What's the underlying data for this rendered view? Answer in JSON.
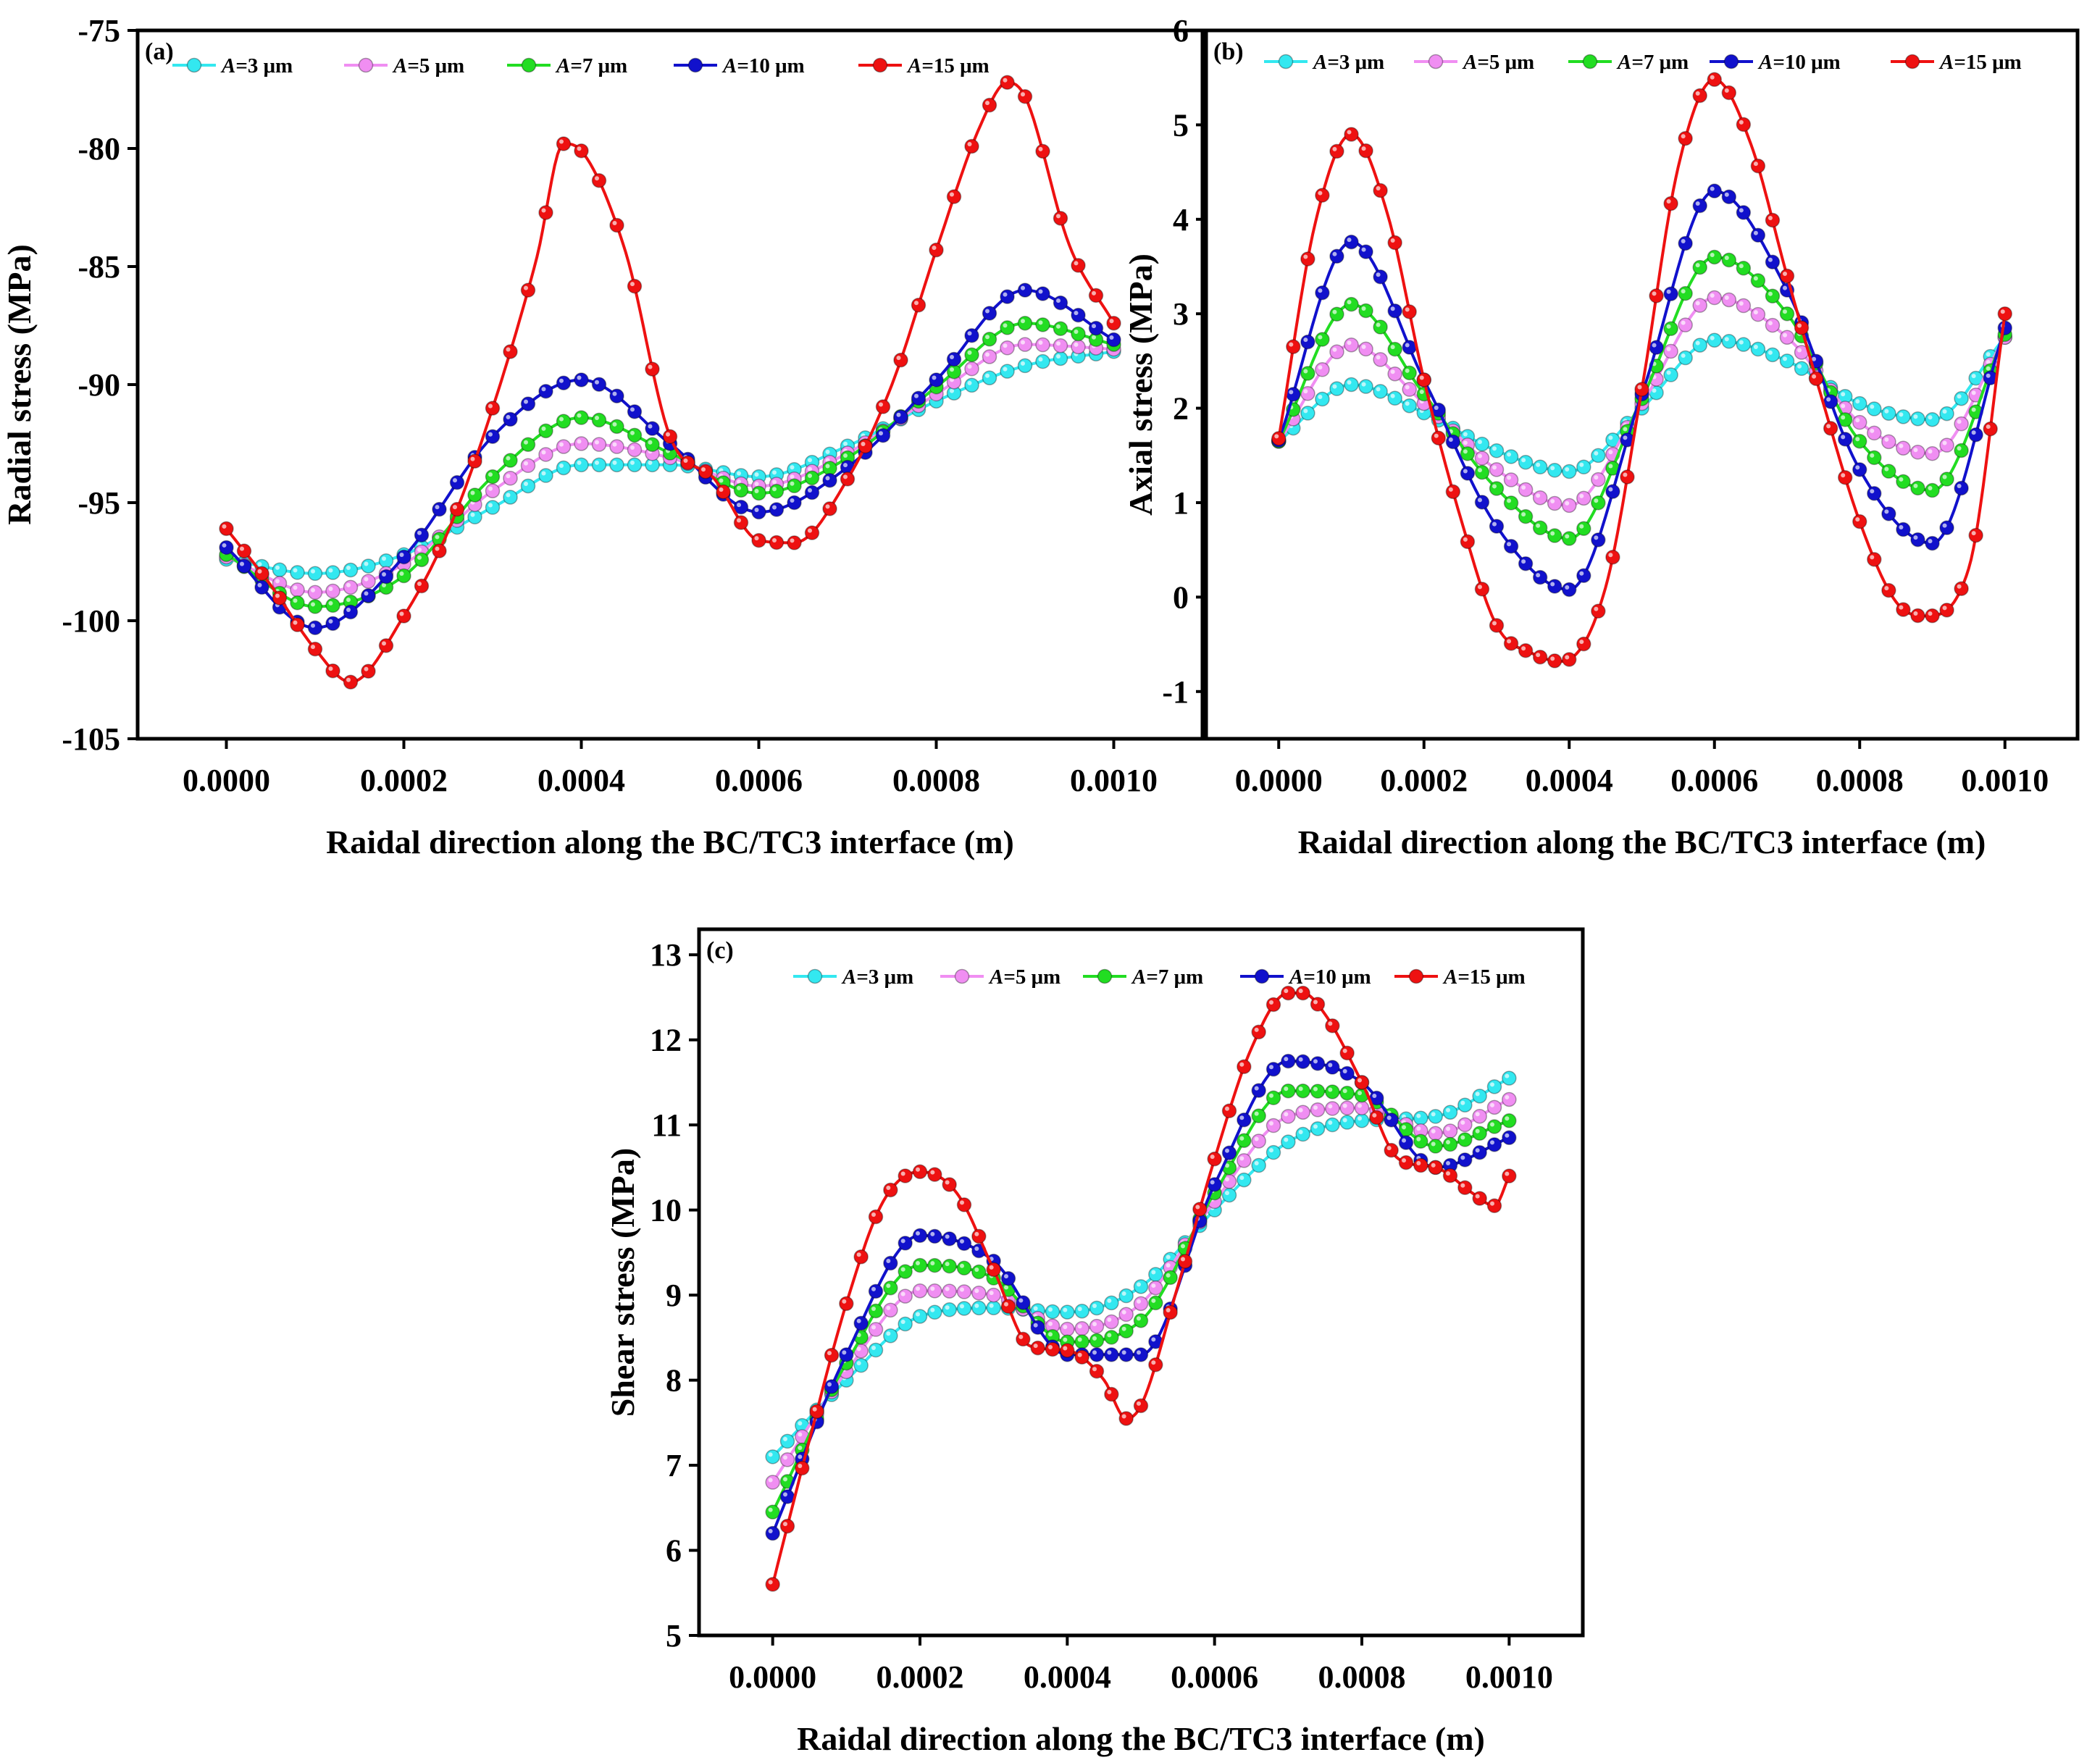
{
  "figure": {
    "x_axis_label": "Raidal direction along the BC/TC3 interface (m)",
    "legend_entries": [
      "A=3 μm",
      "A=5 μm",
      "A=7 μm",
      "A=10 μm",
      "A=15 μm"
    ],
    "series_colors": [
      "#33e8f0",
      "#f08ef2",
      "#22dd22",
      "#1111cc",
      "#ee1111"
    ]
  },
  "chart_data": [
    {
      "panel": "(a)",
      "type": "line",
      "ylabel": "Radial stress (MPa)",
      "xlabel": "Raidal direction along the BC/TC3 interface (m)",
      "xlim": [
        -0.0001,
        0.0011
      ],
      "ylim": [
        -105,
        -75
      ],
      "x_ticks": [
        "0.0000",
        "0.0002",
        "0.0004",
        "0.0006",
        "0.0008",
        "0.0010"
      ],
      "y_ticks": [
        "-105",
        "-100",
        "-95",
        "-90",
        "-85",
        "-80",
        "-75"
      ],
      "grid": false,
      "legend_position": "top",
      "series": [
        {
          "name": "A=3 μm",
          "color": "#33e8f0",
          "x": [
            0,
            0.0001,
            0.0002,
            0.0003,
            0.0004,
            0.0005,
            0.0006,
            0.0007,
            0.0008,
            0.0009,
            0.001
          ],
          "y": [
            -97.4,
            -98.0,
            -97.2,
            -95.2,
            -93.4,
            -93.4,
            -93.9,
            -92.6,
            -90.7,
            -89.2,
            -88.6
          ]
        },
        {
          "name": "A=5 μm",
          "color": "#f08ef2",
          "x": [
            0,
            0.0001,
            0.0002,
            0.0003,
            0.0004,
            0.0005,
            0.0006,
            0.0007,
            0.0008,
            0.0009,
            0.001
          ],
          "y": [
            -97.3,
            -98.8,
            -97.6,
            -94.5,
            -92.5,
            -93.1,
            -94.3,
            -92.9,
            -90.4,
            -88.3,
            -88.5
          ]
        },
        {
          "name": "A=7 μm",
          "color": "#22dd22",
          "x": [
            0,
            0.0001,
            0.0002,
            0.0003,
            0.0004,
            0.0005,
            0.0006,
            0.0007,
            0.0008,
            0.0009,
            0.001
          ],
          "y": [
            -97.2,
            -99.4,
            -98.1,
            -93.9,
            -91.4,
            -92.9,
            -94.6,
            -93.1,
            -90.1,
            -87.4,
            -88.3
          ]
        },
        {
          "name": "A=10 μm",
          "color": "#1111cc",
          "x": [
            0,
            0.0001,
            0.0002,
            0.0003,
            0.0004,
            0.0005,
            0.0006,
            0.0007,
            0.0008,
            0.0009,
            0.001
          ],
          "y": [
            -96.9,
            -100.3,
            -97.3,
            -92.2,
            -89.8,
            -92.5,
            -95.4,
            -93.5,
            -89.8,
            -86.0,
            -88.1
          ]
        },
        {
          "name": "A=15 μm",
          "color": "#ee1111",
          "x": [
            0,
            5e-05,
            0.0001,
            0.00014,
            0.0002,
            0.00025,
            0.0003,
            0.00035,
            0.00038,
            0.0004,
            0.00045,
            0.0005,
            0.00055,
            0.0006,
            0.00064,
            0.0007,
            0.00075,
            0.0008,
            0.00085,
            0.00088,
            0.0009,
            0.00095,
            0.001
          ],
          "y": [
            -96.1,
            -98.5,
            -101.2,
            -102.6,
            -99.8,
            -96.2,
            -91.0,
            -84.6,
            -79.8,
            -80.1,
            -84.4,
            -92.2,
            -94.0,
            -96.6,
            -96.7,
            -94.0,
            -90.0,
            -84.3,
            -79.0,
            -77.2,
            -77.8,
            -84.1,
            -87.4
          ]
        }
      ]
    },
    {
      "panel": "(b)",
      "type": "line",
      "ylabel": "Axial stress (MPa)",
      "xlabel": "Raidal direction along the BC/TC3 interface (m)",
      "xlim": [
        -0.0001,
        0.0011
      ],
      "ylim": [
        -1.5,
        6
      ],
      "x_ticks": [
        "0.0000",
        "0.0002",
        "0.0004",
        "0.0006",
        "0.0008",
        "0.0010"
      ],
      "y_ticks": [
        "-1",
        "0",
        "1",
        "2",
        "3",
        "4",
        "5",
        "6"
      ],
      "grid": false,
      "legend_position": "top",
      "series": [
        {
          "name": "A=3 μm",
          "color": "#33e8f0",
          "x": [
            0,
            0.0001,
            0.0002,
            0.0003,
            0.0004,
            0.0005,
            0.0006,
            0.0007,
            0.0008,
            0.0009,
            0.001
          ],
          "y": [
            1.65,
            2.25,
            1.95,
            1.55,
            1.33,
            2.0,
            2.72,
            2.5,
            2.05,
            1.88,
            2.75
          ]
        },
        {
          "name": "A=5 μm",
          "color": "#f08ef2",
          "x": [
            0,
            0.0001,
            0.0002,
            0.0003,
            0.0004,
            0.0005,
            0.0006,
            0.0007,
            0.0008,
            0.0009,
            0.001
          ],
          "y": [
            1.65,
            2.67,
            2.05,
            1.35,
            0.97,
            2.05,
            3.17,
            2.75,
            1.85,
            1.52,
            2.75
          ]
        },
        {
          "name": "A=7 μm",
          "color": "#22dd22",
          "x": [
            0,
            0.0001,
            0.0002,
            0.0003,
            0.0004,
            0.0005,
            0.0006,
            0.0007,
            0.0008,
            0.0009,
            0.001
          ],
          "y": [
            1.65,
            3.1,
            2.15,
            1.15,
            0.62,
            2.1,
            3.6,
            3.0,
            1.65,
            1.13,
            2.78
          ]
        },
        {
          "name": "A=10 μm",
          "color": "#1111cc",
          "x": [
            0,
            0.0001,
            0.0002,
            0.0003,
            0.0004,
            0.0005,
            0.0006,
            0.0007,
            0.0008,
            0.0009,
            0.001
          ],
          "y": [
            1.66,
            3.76,
            2.3,
            0.75,
            0.08,
            2.15,
            4.3,
            3.25,
            1.35,
            0.57,
            2.85
          ]
        },
        {
          "name": "A=15 μm",
          "color": "#ee1111",
          "x": [
            0,
            5e-05,
            0.0001,
            0.00015,
            0.0002,
            0.00025,
            0.0003,
            0.00035,
            0.00039,
            0.00045,
            0.0005,
            0.00055,
            0.0006,
            0.00065,
            0.0007,
            0.00075,
            0.0008,
            0.00085,
            0.00089,
            0.00095,
            0.001
          ],
          "y": [
            1.68,
            3.95,
            4.9,
            4.05,
            2.3,
            0.85,
            -0.3,
            -0.6,
            -0.68,
            0.1,
            2.2,
            4.55,
            5.48,
            4.8,
            3.4,
            2.05,
            0.8,
            -0.05,
            -0.2,
            0.3,
            3.0
          ]
        }
      ]
    },
    {
      "panel": "(c)",
      "type": "line",
      "ylabel": "Shear stress (MPa)",
      "xlabel": "Raidal direction along the BC/TC3 interface (m)",
      "xlim": [
        -0.0001,
        0.0011
      ],
      "ylim": [
        5,
        13.3
      ],
      "x_ticks": [
        "0.0000",
        "0.0002",
        "0.0004",
        "0.0006",
        "0.0008",
        "0.0010"
      ],
      "y_ticks": [
        "5",
        "6",
        "7",
        "8",
        "9",
        "10",
        "11",
        "12",
        "13"
      ],
      "grid": false,
      "legend_position": "top",
      "series": [
        {
          "name": "A=3 μm",
          "color": "#33e8f0",
          "x": [
            0,
            0.0001,
            0.0002,
            0.0003,
            0.0004,
            0.0005,
            0.0006,
            0.0007,
            0.0008,
            0.0009,
            0.001
          ],
          "y": [
            7.1,
            8.0,
            8.75,
            8.85,
            8.8,
            9.1,
            10.0,
            10.8,
            11.05,
            11.1,
            11.55
          ]
        },
        {
          "name": "A=5 μm",
          "color": "#f08ef2",
          "x": [
            0,
            0.0001,
            0.0002,
            0.0003,
            0.0004,
            0.0005,
            0.0006,
            0.0007,
            0.0008,
            0.0009,
            0.001
          ],
          "y": [
            6.8,
            8.1,
            9.05,
            9.0,
            8.6,
            8.9,
            10.1,
            11.1,
            11.2,
            10.9,
            11.3
          ]
        },
        {
          "name": "A=7 μm",
          "color": "#22dd22",
          "x": [
            0,
            0.0001,
            0.0002,
            0.0003,
            0.0004,
            0.0005,
            0.0006,
            0.0007,
            0.0008,
            0.0009,
            0.001
          ],
          "y": [
            6.45,
            8.2,
            9.35,
            9.2,
            8.45,
            8.7,
            10.2,
            11.4,
            11.35,
            10.75,
            11.05
          ]
        },
        {
          "name": "A=10 μm",
          "color": "#1111cc",
          "x": [
            0,
            0.0001,
            0.0002,
            0.0003,
            0.0004,
            0.0005,
            0.0006,
            0.0007,
            0.0008,
            0.0009,
            0.001
          ],
          "y": [
            6.2,
            8.3,
            9.7,
            9.4,
            8.3,
            8.3,
            10.3,
            11.75,
            11.5,
            10.5,
            10.85
          ]
        },
        {
          "name": "A=15 μm",
          "color": "#ee1111",
          "x": [
            0,
            5e-05,
            0.0001,
            0.00015,
            0.0002,
            0.00025,
            0.0003,
            0.00035,
            0.0004,
            0.00045,
            0.00048,
            0.0005,
            0.00055,
            0.0006,
            0.00065,
            0.0007,
            0.00072,
            0.00075,
            0.0008,
            0.00085,
            0.0009,
            0.00095,
            0.00098,
            0.001
          ],
          "y": [
            5.6,
            7.3,
            8.9,
            10.1,
            10.45,
            10.2,
            9.3,
            8.4,
            8.35,
            8.0,
            7.55,
            7.7,
            9.1,
            10.6,
            11.9,
            12.55,
            12.55,
            12.3,
            11.5,
            10.6,
            10.5,
            10.2,
            10.05,
            10.4
          ]
        }
      ]
    }
  ]
}
